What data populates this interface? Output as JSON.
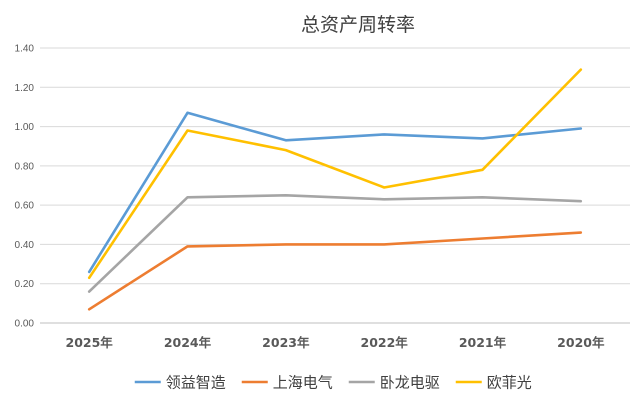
{
  "chart_data": {
    "type": "line",
    "title": "总资产周转率",
    "categories": [
      "2025年",
      "2024年",
      "2023年",
      "2022年",
      "2021年",
      "2020年"
    ],
    "ylim": [
      0,
      1.4
    ],
    "yticks": [
      "0.00",
      "0.20",
      "0.40",
      "0.60",
      "0.80",
      "1.00",
      "1.20",
      "1.40"
    ],
    "grid": true,
    "legend_position": "bottom",
    "series": [
      {
        "name": "领益智造",
        "color": "#5b9bd5",
        "values": [
          0.26,
          1.07,
          0.93,
          0.96,
          0.94,
          0.99
        ]
      },
      {
        "name": "上海电气",
        "color": "#ed7d31",
        "values": [
          0.07,
          0.39,
          0.4,
          0.4,
          0.43,
          0.46
        ]
      },
      {
        "name": "卧龙电驱",
        "color": "#a5a5a5",
        "values": [
          0.16,
          0.64,
          0.65,
          0.63,
          0.64,
          0.62
        ]
      },
      {
        "name": "欧菲光",
        "color": "#ffc000",
        "values": [
          0.23,
          0.98,
          0.88,
          0.69,
          0.78,
          1.29
        ]
      }
    ]
  }
}
